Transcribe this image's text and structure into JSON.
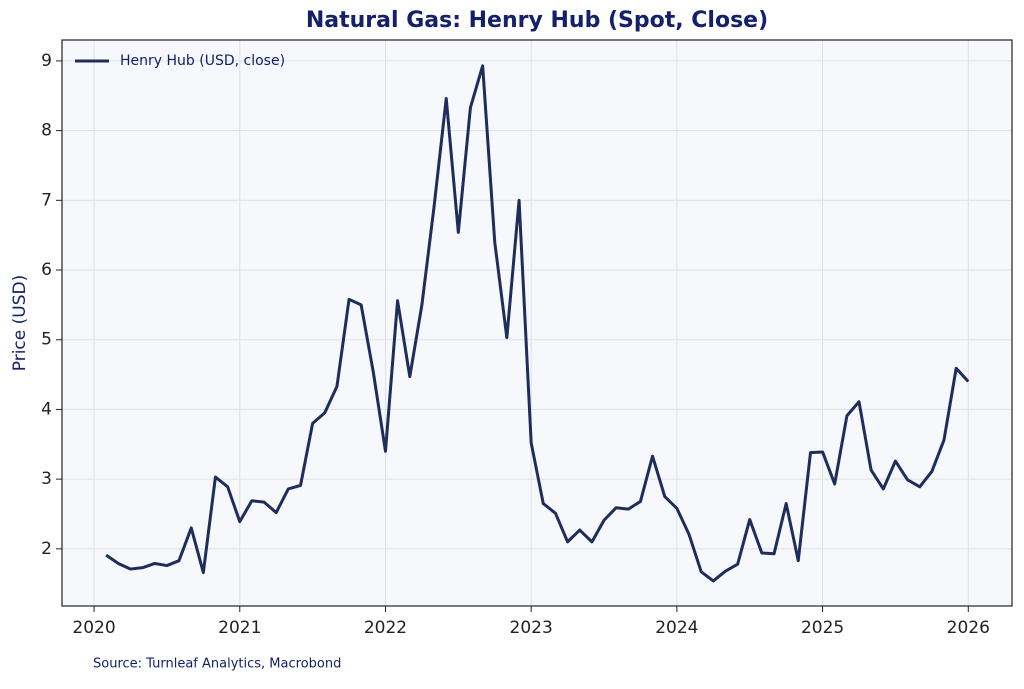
{
  "chart_data": {
    "type": "line",
    "title": "Natural Gas: Henry Hub (Spot, Close)",
    "y_label": "Price (USD)",
    "source": "Source: Turnleaf Analytics, Macrobond",
    "x": [
      2020.083,
      2020.167,
      2020.25,
      2020.333,
      2020.417,
      2020.5,
      2020.583,
      2020.667,
      2020.75,
      2020.833,
      2020.917,
      2021,
      2021.083,
      2021.167,
      2021.25,
      2021.333,
      2021.417,
      2021.5,
      2021.583,
      2021.667,
      2021.75,
      2021.833,
      2021.917,
      2022,
      2022.083,
      2022.167,
      2022.25,
      2022.333,
      2022.417,
      2022.5,
      2022.583,
      2022.667,
      2022.75,
      2022.833,
      2022.917,
      2023,
      2023.083,
      2023.167,
      2023.25,
      2023.333,
      2023.417,
      2023.5,
      2023.583,
      2023.667,
      2023.75,
      2023.833,
      2023.917,
      2024,
      2024.083,
      2024.167,
      2024.25,
      2024.333,
      2024.417,
      2024.5,
      2024.583,
      2024.667,
      2024.75,
      2024.833,
      2024.917,
      2025,
      2025.083,
      2025.167,
      2025.25,
      2025.333,
      2025.417,
      2025.5,
      2025.583,
      2025.667,
      2025.75,
      2025.833,
      2025.917,
      2026
    ],
    "series": [
      {
        "name": "Henry Hub (USD, close)",
        "color": "#1f2d5c",
        "values": [
          1.91,
          1.79,
          1.71,
          1.73,
          1.79,
          1.76,
          1.83,
          2.3,
          1.66,
          3.03,
          2.89,
          2.39,
          2.69,
          2.67,
          2.52,
          2.86,
          2.91,
          3.8,
          3.95,
          4.33,
          5.58,
          5.5,
          4.53,
          3.4,
          5.56,
          4.47,
          5.5,
          6.9,
          8.46,
          6.54,
          8.33,
          8.93,
          6.4,
          5.03,
          7.0,
          3.52,
          2.65,
          2.51,
          2.1,
          2.27,
          2.1,
          2.41,
          2.59,
          2.57,
          2.68,
          3.33,
          2.75,
          2.58,
          2.21,
          1.67,
          1.54,
          1.68,
          1.78,
          2.42,
          1.94,
          1.93,
          2.65,
          1.83,
          3.38,
          3.39,
          2.93,
          3.91,
          4.11,
          3.13,
          2.86,
          3.26,
          2.99,
          2.89,
          3.11,
          3.56,
          4.59,
          4.4
        ]
      }
    ],
    "xlim": [
      2019.78,
      2026.3
    ],
    "ylim": [
      1.18,
      9.3
    ],
    "xticks": [
      2020,
      2021,
      2022,
      2023,
      2024,
      2025,
      2026
    ],
    "yticks": [
      2,
      3,
      4,
      5,
      6,
      7,
      8,
      9
    ],
    "grid": true,
    "legend": "upper left"
  }
}
